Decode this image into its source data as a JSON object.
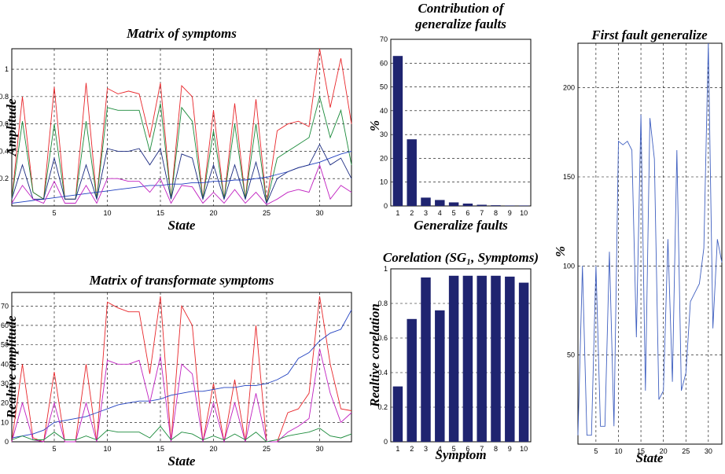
{
  "chart_data": [
    {
      "type": "line",
      "title": "Matrix of symptoms",
      "x_label": "State",
      "y_label": "Amplitude",
      "x": [
        1,
        2,
        3,
        4,
        5,
        6,
        7,
        8,
        9,
        10,
        11,
        12,
        13,
        14,
        15,
        16,
        17,
        18,
        19,
        20,
        21,
        22,
        23,
        24,
        25,
        26,
        27,
        28,
        29,
        30,
        31,
        32,
        33
      ],
      "xlim": [
        1,
        33
      ],
      "xticks": [
        5,
        10,
        15,
        20,
        25,
        30
      ],
      "ylim": [
        0,
        1.15
      ],
      "yticks": [
        0.2,
        0.4,
        0.6,
        0.8,
        1
      ],
      "grid": true,
      "series": [
        {
          "color": "#e8262a",
          "values": [
            0.05,
            0.8,
            0.1,
            0.05,
            0.87,
            0.05,
            0.05,
            0.9,
            0.05,
            0.86,
            0.82,
            0.84,
            0.82,
            0.5,
            0.9,
            0.05,
            0.88,
            0.8,
            0.05,
            0.7,
            0.05,
            0.75,
            0.05,
            0.78,
            0.02,
            0.55,
            0.6,
            0.62,
            0.58,
            1.15,
            0.72,
            1.08,
            0.6
          ]
        },
        {
          "color": "#1a8a3a",
          "values": [
            0.05,
            0.62,
            0.1,
            0.05,
            0.6,
            0.05,
            0.05,
            0.62,
            0.05,
            0.72,
            0.7,
            0.7,
            0.7,
            0.4,
            0.75,
            0.05,
            0.72,
            0.62,
            0.05,
            0.55,
            0.05,
            0.6,
            0.05,
            0.6,
            0.02,
            0.35,
            0.4,
            0.45,
            0.5,
            0.8,
            0.5,
            0.7,
            0.3
          ]
        },
        {
          "color": "#2040c0",
          "values": [
            0.02,
            0.03,
            0.04,
            0.05,
            0.06,
            0.07,
            0.08,
            0.09,
            0.1,
            0.11,
            0.12,
            0.13,
            0.14,
            0.15,
            0.15,
            0.16,
            0.16,
            0.17,
            0.17,
            0.18,
            0.18,
            0.19,
            0.19,
            0.2,
            0.21,
            0.23,
            0.25,
            0.28,
            0.3,
            0.32,
            0.35,
            0.38,
            0.4
          ]
        },
        {
          "color": "#1a2a80",
          "values": [
            0.05,
            0.3,
            0.05,
            0.05,
            0.35,
            0.05,
            0.05,
            0.3,
            0.05,
            0.42,
            0.4,
            0.4,
            0.42,
            0.3,
            0.42,
            0.05,
            0.38,
            0.35,
            0.05,
            0.3,
            0.05,
            0.3,
            0.05,
            0.32,
            0.02,
            0.2,
            0.25,
            0.28,
            0.3,
            0.45,
            0.3,
            0.35,
            0.2
          ]
        },
        {
          "color": "#c020c0",
          "values": [
            0.02,
            0.15,
            0.05,
            0.02,
            0.18,
            0.02,
            0.02,
            0.15,
            0.02,
            0.2,
            0.2,
            0.18,
            0.18,
            0.1,
            0.2,
            0.02,
            0.15,
            0.14,
            0.02,
            0.1,
            0.02,
            0.12,
            0.02,
            0.1,
            0.01,
            0.05,
            0.1,
            0.12,
            0.1,
            0.3,
            0.05,
            0.15,
            0.1
          ]
        }
      ]
    },
    {
      "type": "line",
      "title": "Matrix of transformate symptoms",
      "x_label": "State",
      "y_label": "Realtive amplitude",
      "x": [
        1,
        2,
        3,
        4,
        5,
        6,
        7,
        8,
        9,
        10,
        11,
        12,
        13,
        14,
        15,
        16,
        17,
        18,
        19,
        20,
        21,
        22,
        23,
        24,
        25,
        26,
        27,
        28,
        29,
        30,
        31,
        32,
        33
      ],
      "xlim": [
        1,
        33
      ],
      "xticks": [
        5,
        10,
        15,
        20,
        25,
        30
      ],
      "ylim": [
        0,
        77
      ],
      "yticks": [
        0,
        10,
        20,
        30,
        40,
        50,
        60,
        70
      ],
      "grid": true,
      "series": [
        {
          "color": "#e8262a",
          "values": [
            0,
            40,
            2,
            0,
            36,
            0,
            0,
            40,
            0,
            72,
            69,
            67,
            67,
            35,
            75,
            0,
            70,
            60,
            0,
            30,
            0,
            32,
            0,
            60,
            0,
            0,
            15,
            17,
            25,
            75,
            40,
            17,
            16
          ]
        },
        {
          "color": "#2040c0",
          "values": [
            2,
            3,
            4,
            6,
            10,
            11,
            12,
            13,
            15,
            17,
            19,
            20,
            21,
            21,
            22,
            24,
            25,
            26,
            26,
            27,
            28,
            28,
            29,
            29,
            30,
            32,
            35,
            43,
            46,
            52,
            56,
            58,
            68
          ]
        },
        {
          "color": "#c020c0",
          "values": [
            0,
            20,
            1,
            0,
            20,
            0,
            0,
            20,
            0,
            42,
            40,
            40,
            42,
            20,
            44,
            0,
            40,
            35,
            0,
            20,
            0,
            20,
            0,
            25,
            0,
            0,
            5,
            8,
            12,
            48,
            25,
            10,
            15
          ]
        },
        {
          "color": "#1a8a3a",
          "values": [
            1,
            3,
            1,
            1,
            5,
            1,
            1,
            3,
            1,
            6,
            5,
            5,
            5,
            2,
            8,
            1,
            5,
            4,
            1,
            3,
            1,
            4,
            1,
            5,
            0,
            1,
            3,
            4,
            5,
            7,
            3,
            2,
            4
          ]
        }
      ]
    },
    {
      "type": "bar",
      "title": [
        "Contribution of",
        "generalize faults"
      ],
      "x_label": "Generalize faults",
      "y_label": "%",
      "categories": [
        "1",
        "2",
        "3",
        "4",
        "5",
        "6",
        "7",
        "8",
        "9",
        "10"
      ],
      "values": [
        63,
        28,
        3.5,
        2.5,
        1.5,
        1,
        0.5,
        0.3,
        0.2,
        0.2
      ],
      "color": "#1f2470",
      "ylim": [
        0,
        70
      ],
      "yticks": [
        0,
        10,
        20,
        30,
        40,
        50,
        60,
        70
      ],
      "grid": true
    },
    {
      "type": "bar",
      "title": "Corelation (SG₁, Symptoms)",
      "x_label": "Symptom",
      "y_label": "Realtive corelation",
      "categories": [
        "1",
        "2",
        "3",
        "4",
        "5",
        "6",
        "7",
        "8",
        "9",
        "10"
      ],
      "values": [
        0.32,
        0.71,
        0.95,
        0.76,
        0.96,
        0.96,
        0.96,
        0.96,
        0.955,
        0.92
      ],
      "color": "#1f2470",
      "ylim": [
        0,
        1
      ],
      "yticks": [
        0,
        0.2,
        0.4,
        0.6,
        0.8,
        1
      ],
      "grid": true
    },
    {
      "type": "line",
      "title": "First fault generalize",
      "x_label": "State",
      "y_label": "%",
      "x": [
        1,
        2,
        3,
        4,
        5,
        6,
        7,
        8,
        9,
        10,
        11,
        12,
        13,
        14,
        15,
        16,
        17,
        18,
        19,
        20,
        21,
        22,
        23,
        24,
        25,
        26,
        27,
        28,
        29,
        30,
        31,
        32,
        33
      ],
      "xlim": [
        1,
        33
      ],
      "xticks": [
        5,
        10,
        15,
        20,
        25,
        30
      ],
      "ylim": [
        0,
        225
      ],
      "yticks": [
        50,
        100,
        150,
        200
      ],
      "grid": true,
      "series": [
        {
          "color": "#4060c0",
          "values": [
            5,
            100,
            5,
            5,
            100,
            10,
            10,
            108,
            10,
            170,
            168,
            170,
            165,
            60,
            185,
            30,
            183,
            160,
            25,
            30,
            115,
            35,
            165,
            30,
            40,
            80,
            85,
            90,
            110,
            225,
            65,
            115,
            102
          ]
        }
      ]
    }
  ]
}
